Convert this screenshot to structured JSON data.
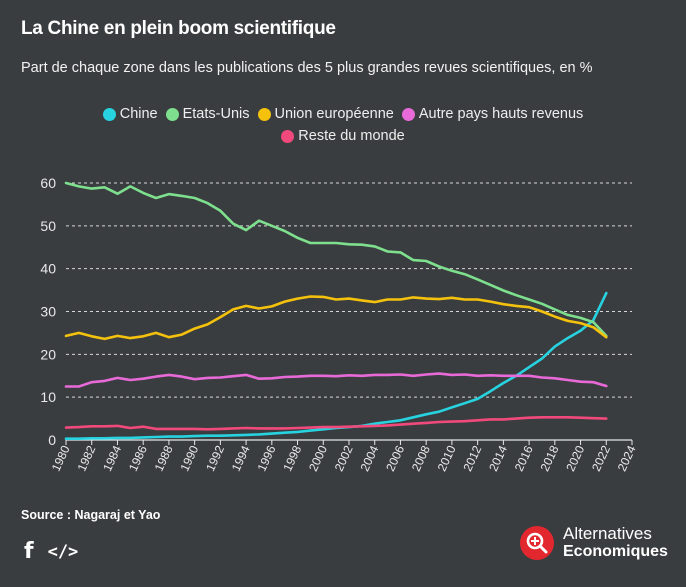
{
  "title": "La Chine en plein boom scientifique",
  "subtitle": "Part de chaque zone dans les publications des 5 plus grandes revues scientifiques, en %",
  "source": "Source : Nagaraj et Yao",
  "brand": {
    "line1": "Alternatives",
    "line2": "Economiques"
  },
  "icons": {
    "facebook": "f",
    "embed": "</>"
  },
  "colors": {
    "background": "#3a3d3f",
    "text": "#ffffff",
    "brand_red": "#e2272f"
  },
  "chart_data": {
    "type": "line",
    "xlabel": "",
    "ylabel": "",
    "xlim": [
      1980,
      2024
    ],
    "ylim": [
      0,
      60
    ],
    "yticks": [
      0,
      10,
      20,
      30,
      40,
      50,
      60
    ],
    "xticks": [
      "1980",
      "1982",
      "1984",
      "1986",
      "1988",
      "1990",
      "1992",
      "1994",
      "1996",
      "1998",
      "2000",
      "2002",
      "2004",
      "2006",
      "2008",
      "2010",
      "2012",
      "2014",
      "2016",
      "2018",
      "2020",
      "2022",
      "2024"
    ],
    "grid": "horizontal dashed",
    "legend_position": "top",
    "x": [
      1980,
      1981,
      1982,
      1983,
      1984,
      1985,
      1986,
      1987,
      1988,
      1989,
      1990,
      1991,
      1992,
      1993,
      1994,
      1995,
      1996,
      1997,
      1998,
      1999,
      2000,
      2001,
      2002,
      2003,
      2004,
      2005,
      2006,
      2007,
      2008,
      2009,
      2010,
      2011,
      2012,
      2013,
      2014,
      2015,
      2016,
      2017,
      2018,
      2019,
      2020,
      2021,
      2022
    ],
    "series": [
      {
        "name": "Chine",
        "color": "#27d3e0",
        "values": [
          0.3,
          0.3,
          0.4,
          0.4,
          0.5,
          0.5,
          0.6,
          0.7,
          0.8,
          0.8,
          0.9,
          1.0,
          1.0,
          1.1,
          1.2,
          1.3,
          1.5,
          1.7,
          1.9,
          2.2,
          2.5,
          2.8,
          3.0,
          3.3,
          3.8,
          4.2,
          4.6,
          5.3,
          6.0,
          6.6,
          7.6,
          8.6,
          9.6,
          11.4,
          13.3,
          15.0,
          17.0,
          19.0,
          21.8,
          23.8,
          25.5,
          28.0,
          34.3
        ]
      },
      {
        "name": "Etats-Unis",
        "color": "#7ee08e",
        "values": [
          60.0,
          59.2,
          58.7,
          59.0,
          57.5,
          59.2,
          57.7,
          56.5,
          57.4,
          57.0,
          56.5,
          55.3,
          53.5,
          50.5,
          49.0,
          51.2,
          50.0,
          48.8,
          47.2,
          46.0,
          46.0,
          46.0,
          45.7,
          45.6,
          45.2,
          44.0,
          43.8,
          42.0,
          41.8,
          40.5,
          39.5,
          38.7,
          37.5,
          36.2,
          34.9,
          33.8,
          32.8,
          31.8,
          30.5,
          29.2,
          28.5,
          27.5,
          24.3
        ]
      },
      {
        "name": "Union européenne",
        "color": "#f4c20d",
        "values": [
          24.3,
          25.0,
          24.2,
          23.6,
          24.3,
          23.8,
          24.2,
          25.0,
          24.0,
          24.6,
          26.0,
          27.0,
          28.7,
          30.5,
          31.3,
          30.7,
          31.2,
          32.3,
          33.0,
          33.5,
          33.4,
          32.8,
          33.0,
          32.6,
          32.2,
          32.8,
          32.8,
          33.3,
          33.0,
          32.9,
          33.2,
          32.8,
          32.8,
          32.3,
          31.7,
          31.3,
          31.0,
          30.0,
          28.8,
          27.8,
          27.3,
          26.3,
          24.0
        ]
      },
      {
        "name": "Autre pays hauts revenus",
        "color": "#e86ad8",
        "values": [
          12.5,
          12.5,
          13.5,
          13.8,
          14.5,
          14.0,
          14.3,
          14.8,
          15.2,
          14.8,
          14.2,
          14.5,
          14.6,
          14.9,
          15.2,
          14.3,
          14.4,
          14.7,
          14.8,
          15.0,
          15.0,
          14.9,
          15.1,
          15.0,
          15.2,
          15.2,
          15.3,
          15.0,
          15.3,
          15.5,
          15.2,
          15.3,
          15.0,
          15.1,
          15.0,
          15.0,
          15.0,
          14.6,
          14.4,
          14.0,
          13.6,
          13.5,
          12.6
        ]
      },
      {
        "name": "Reste du monde",
        "color": "#f2497c",
        "values": [
          2.9,
          3.0,
          3.2,
          3.2,
          3.3,
          2.8,
          3.1,
          2.6,
          2.6,
          2.6,
          2.6,
          2.5,
          2.6,
          2.7,
          2.8,
          2.7,
          2.7,
          2.7,
          2.8,
          2.9,
          3.0,
          3.0,
          3.1,
          3.2,
          3.3,
          3.4,
          3.6,
          3.8,
          4.0,
          4.2,
          4.3,
          4.4,
          4.6,
          4.8,
          4.8,
          5.0,
          5.2,
          5.3,
          5.3,
          5.3,
          5.2,
          5.1,
          5.0
        ]
      }
    ]
  }
}
